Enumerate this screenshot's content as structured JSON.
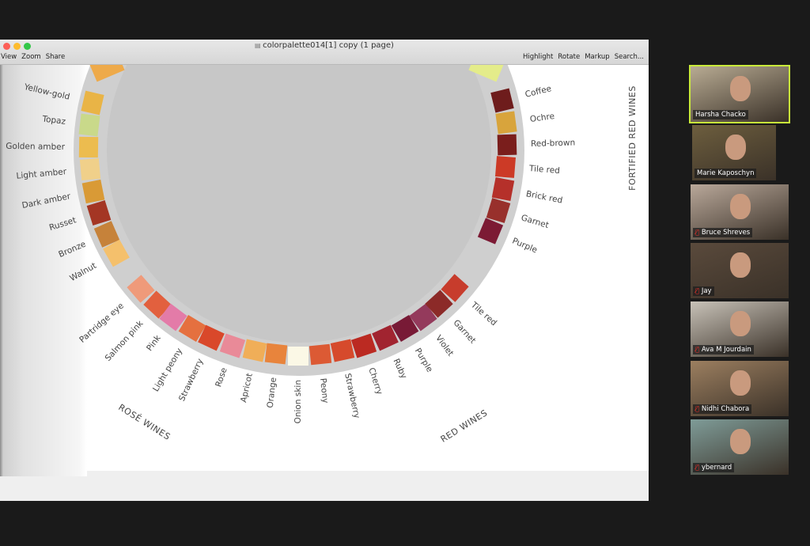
{
  "window": {
    "title": "colorpalette014[1] copy (1 page)",
    "menu_left": [
      "View",
      "Zoom",
      "Share"
    ],
    "menu_right": [
      "Highlight",
      "Rotate",
      "Markup",
      "Search..."
    ]
  },
  "wheel": {
    "white_wines": [
      {
        "name": "Yellow-gold",
        "color": "#e9b446"
      },
      {
        "name": "Topaz",
        "color": "#c9d98a"
      },
      {
        "name": "Golden amber",
        "color": "#ecbc4f"
      },
      {
        "name": "Light amber",
        "color": "#f0d08a"
      },
      {
        "name": "Dark amber",
        "color": "#d99a36"
      },
      {
        "name": "Russet",
        "color": "#a43624"
      },
      {
        "name": "Bronze",
        "color": "#c6823a"
      },
      {
        "name": "Walnut",
        "color": "#f4c06c"
      }
    ],
    "rose_wines": [
      {
        "name": "Partridge eye",
        "color": "#ef9a7a"
      },
      {
        "name": "Salmon pink",
        "color": "#e2603e"
      },
      {
        "name": "Pink",
        "color": "#e37ba8"
      },
      {
        "name": "Light peony",
        "color": "#e5703f"
      },
      {
        "name": "Strawberry",
        "color": "#d9482a"
      },
      {
        "name": "Rose",
        "color": "#e98a98"
      },
      {
        "name": "Apricot",
        "color": "#f0ae58"
      },
      {
        "name": "Orange",
        "color": "#e8843c"
      },
      {
        "name": "Onion skin",
        "color": "#fbf8e6"
      }
    ],
    "red_wines": [
      {
        "name": "Peony",
        "color": "#dc5a34"
      },
      {
        "name": "Strawberry",
        "color": "#d64a2c"
      },
      {
        "name": "Cherry",
        "color": "#bb2a22"
      },
      {
        "name": "Ruby",
        "color": "#a12430"
      },
      {
        "name": "Purple",
        "color": "#781a36"
      },
      {
        "name": "Violet",
        "color": "#943a5c"
      },
      {
        "name": "Garnet",
        "color": "#8c2a28"
      },
      {
        "name": "Tile red",
        "color": "#c73c2c"
      }
    ],
    "fortified_red_wines": [
      {
        "name": "Coffee",
        "color": "#6e1c1c"
      },
      {
        "name": "Ochre",
        "color": "#d8a43c"
      },
      {
        "name": "Red-brown",
        "color": "#7a1e1c"
      },
      {
        "name": "Tile red",
        "color": "#cc3a26"
      },
      {
        "name": "Brick red",
        "color": "#b5302a"
      },
      {
        "name": "Garnet",
        "color": "#98302c"
      },
      {
        "name": "Purple",
        "color": "#7c1a34"
      }
    ],
    "section_labels": {
      "rose": "ROSÉ WINES",
      "red": "RED WINES",
      "fortified": "FORTIFIED RED WINES"
    }
  },
  "participants": [
    {
      "name": "Harsha Chacko",
      "muted": false,
      "active": true,
      "bg": "#b8ab93"
    },
    {
      "name": "Marie Kaposchyn",
      "muted": false,
      "active": false,
      "bg": "#6d5e3e"
    },
    {
      "name": "Bruce Shreves",
      "muted": true,
      "active": false,
      "bg": "#b9a89a"
    },
    {
      "name": "Jay",
      "muted": true,
      "active": false,
      "bg": "#5a4a3c"
    },
    {
      "name": "Ava M Jourdain",
      "muted": true,
      "active": false,
      "bg": "#c8c2b8"
    },
    {
      "name": "Nidhi Chabora",
      "muted": true,
      "active": false,
      "bg": "#9c7f60"
    },
    {
      "name": "ybernard",
      "muted": true,
      "active": false,
      "bg": "#7f9c98"
    }
  ]
}
